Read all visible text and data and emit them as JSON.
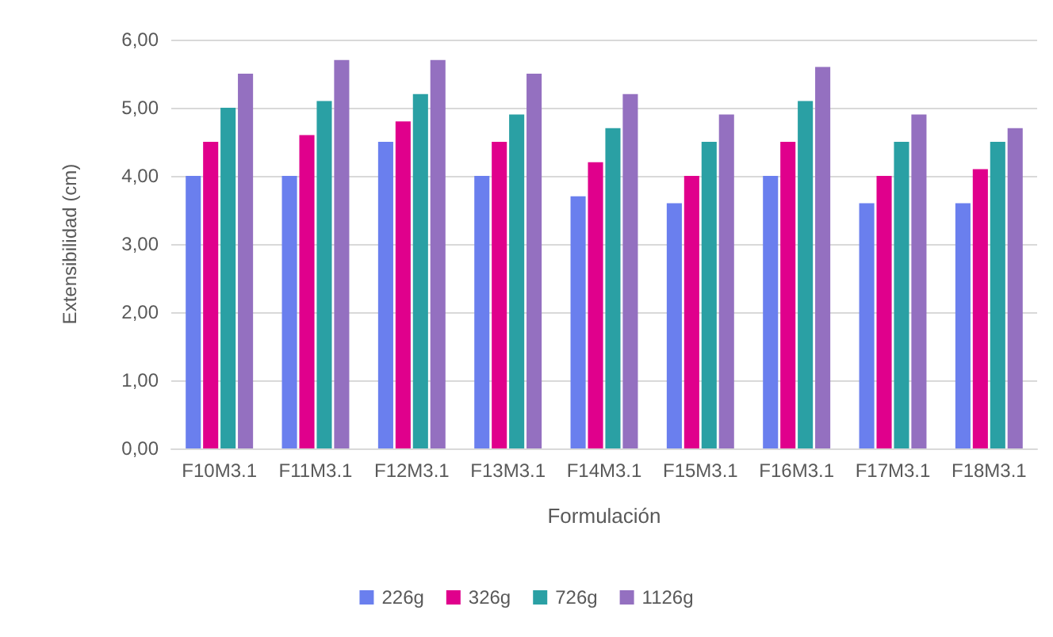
{
  "chart_data": {
    "type": "bar",
    "xlabel": "Formulación",
    "ylabel": "Extensibilidad (cm)",
    "categories": [
      "F10M3.1",
      "F11M3.1",
      "F12M3.1",
      "F13M3.1",
      "F14M3.1",
      "F15M3.1",
      "F16M3.1",
      "F17M3.1",
      "F18M3.1"
    ],
    "series": [
      {
        "name": "226g",
        "color": "#6a7fee",
        "values": [
          4.0,
          4.0,
          4.5,
          4.0,
          3.7,
          3.6,
          4.0,
          3.6,
          3.6
        ]
      },
      {
        "name": "326g",
        "color": "#e0008c",
        "values": [
          4.5,
          4.6,
          4.8,
          4.5,
          4.2,
          4.0,
          4.5,
          4.0,
          4.1
        ]
      },
      {
        "name": "726g",
        "color": "#2aa0a4",
        "values": [
          5.0,
          5.1,
          5.2,
          4.9,
          4.7,
          4.5,
          5.1,
          4.5,
          4.5
        ]
      },
      {
        "name": "1126g",
        "color": "#9470c0",
        "values": [
          5.5,
          5.7,
          5.7,
          5.5,
          5.2,
          4.9,
          5.6,
          4.9,
          4.7
        ]
      }
    ],
    "ylim": [
      0,
      6
    ],
    "yticks": [
      {
        "value": 0,
        "label": "0,00"
      },
      {
        "value": 1,
        "label": "1,00"
      },
      {
        "value": 2,
        "label": "2,00"
      },
      {
        "value": 3,
        "label": "3,00"
      },
      {
        "value": 4,
        "label": "4,00"
      },
      {
        "value": 5,
        "label": "5,00"
      },
      {
        "value": 6,
        "label": "6,00"
      }
    ],
    "grid": "y",
    "legend": "bottom"
  }
}
